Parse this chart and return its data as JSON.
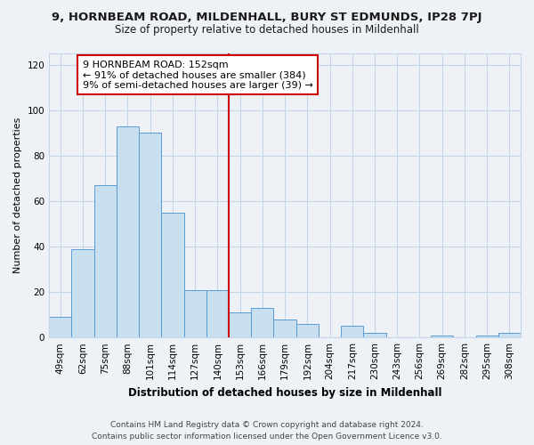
{
  "title_line1": "9, HORNBEAM ROAD, MILDENHALL, BURY ST EDMUNDS, IP28 7PJ",
  "title_line2": "Size of property relative to detached houses in Mildenhall",
  "xlabel": "Distribution of detached houses by size in Mildenhall",
  "ylabel": "Number of detached properties",
  "categories": [
    "49sqm",
    "62sqm",
    "75sqm",
    "88sqm",
    "101sqm",
    "114sqm",
    "127sqm",
    "140sqm",
    "153sqm",
    "166sqm",
    "179sqm",
    "192sqm",
    "204sqm",
    "217sqm",
    "230sqm",
    "243sqm",
    "256sqm",
    "269sqm",
    "282sqm",
    "295sqm",
    "308sqm"
  ],
  "values": [
    9,
    39,
    67,
    93,
    90,
    55,
    21,
    21,
    11,
    13,
    8,
    6,
    0,
    5,
    2,
    0,
    0,
    1,
    0,
    1,
    2
  ],
  "bar_color": "#c8dff0",
  "bar_edge_color": "#5b9bd5",
  "annotation_box_text_line1": "9 HORNBEAM ROAD: 152sqm",
  "annotation_box_text_line2": "← 91% of detached houses are smaller (384)",
  "annotation_box_text_line3": "9% of semi-detached houses are larger (39) →",
  "annotation_box_edge_color": "#cc0000",
  "vline_color": "#cc0000",
  "vline_x_index": 8,
  "ylim": [
    0,
    125
  ],
  "yticks": [
    0,
    20,
    40,
    60,
    80,
    100,
    120
  ],
  "footer_line1": "Contains HM Land Registry data © Crown copyright and database right 2024.",
  "footer_line2": "Contains public sector information licensed under the Open Government Licence v3.0.",
  "bg_color": "#eef2f7",
  "plot_bg_color": "#eef2f7",
  "grid_color": "#c5d5e8",
  "title_fontsize": 9.5,
  "subtitle_fontsize": 8.5,
  "xlabel_fontsize": 8.5,
  "ylabel_fontsize": 8.0,
  "tick_fontsize": 7.5,
  "footer_fontsize": 6.5
}
